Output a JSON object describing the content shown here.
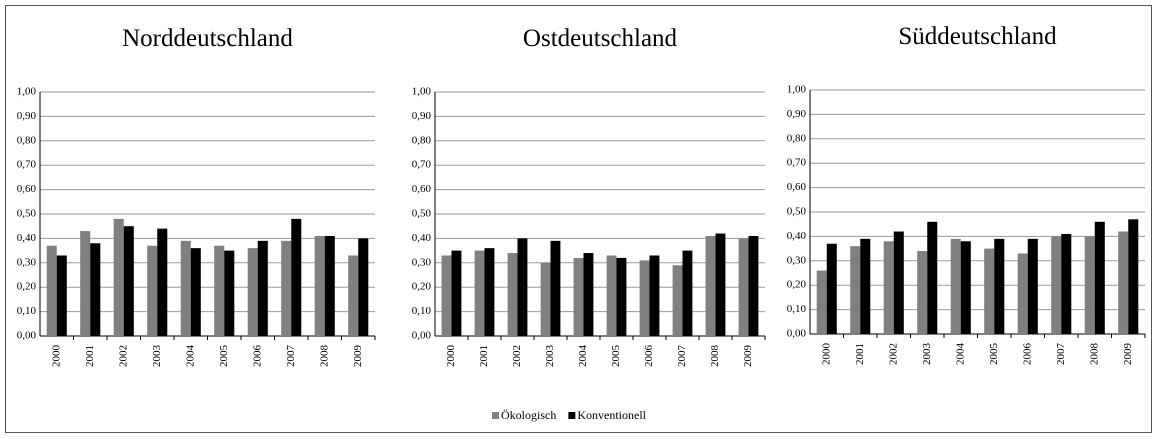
{
  "chart_data": [
    {
      "type": "bar",
      "title": "Norddeutschland",
      "categories": [
        "2000",
        "2001",
        "2002",
        "2003",
        "2004",
        "2005",
        "2006",
        "2007",
        "2008",
        "2009"
      ],
      "series": [
        {
          "name": "Ökologisch",
          "color": "#808080",
          "values": [
            0.37,
            0.43,
            0.48,
            0.37,
            0.39,
            0.37,
            0.36,
            0.39,
            0.41,
            0.33
          ]
        },
        {
          "name": "Konventionell",
          "color": "#000000",
          "values": [
            0.33,
            0.38,
            0.45,
            0.44,
            0.36,
            0.35,
            0.39,
            0.48,
            0.41,
            0.4
          ]
        }
      ],
      "ylim": [
        0,
        1
      ],
      "yticks": [
        {
          "value": 0,
          "label": "0,00"
        },
        {
          "value": 0.1,
          "label": "0,10"
        },
        {
          "value": 0.2,
          "label": "0,20"
        },
        {
          "value": 0.3,
          "label": "0,30"
        },
        {
          "value": 0.4,
          "label": "0,40"
        },
        {
          "value": 0.5,
          "label": "0,50"
        },
        {
          "value": 0.6,
          "label": "0,60"
        },
        {
          "value": 0.7,
          "label": "0,70"
        },
        {
          "value": 0.8,
          "label": "0,80"
        },
        {
          "value": 0.9,
          "label": "0,90"
        },
        {
          "value": 1,
          "label": "1,00"
        }
      ],
      "grid": true,
      "legend": "bottom"
    },
    {
      "type": "bar",
      "title": "Ostdeutschland",
      "categories": [
        "2000",
        "2001",
        "2002",
        "2003",
        "2004",
        "2005",
        "2006",
        "2007",
        "2008",
        "2009"
      ],
      "series": [
        {
          "color": "#808080",
          "values": [
            0.33,
            0.35,
            0.34,
            0.3,
            0.32,
            0.33,
            0.31,
            0.29,
            0.41,
            0.4
          ]
        },
        {
          "color": "#000000",
          "values": [
            0.35,
            0.36,
            0.4,
            0.39,
            0.34,
            0.32,
            0.33,
            0.35,
            0.42,
            0.41
          ]
        }
      ],
      "ylim": [
        0,
        1
      ],
      "yticks": [
        {
          "value": 0,
          "label": "0,00"
        },
        {
          "value": 0.1,
          "label": "0,10"
        },
        {
          "value": 0.2,
          "label": "0,20"
        },
        {
          "value": 0.3,
          "label": "0,30"
        },
        {
          "value": 0.4,
          "label": "0,40"
        },
        {
          "value": 0.5,
          "label": "0,50"
        },
        {
          "value": 0.6,
          "label": "0,60"
        },
        {
          "value": 0.7,
          "label": "0,70"
        },
        {
          "value": 0.8,
          "label": "0,80"
        },
        {
          "value": 0.9,
          "label": "0,90"
        },
        {
          "value": 1,
          "label": "1,00"
        }
      ],
      "grid": true
    },
    {
      "type": "bar",
      "title": "Süddeutschland",
      "categories": [
        "2000",
        "2001",
        "2002",
        "2003",
        "2004",
        "2005",
        "2006",
        "2007",
        "2008",
        "2009"
      ],
      "series": [
        {
          "color": "#808080",
          "values": [
            0.26,
            0.36,
            0.38,
            0.34,
            0.39,
            0.35,
            0.33,
            0.4,
            0.4,
            0.42
          ]
        },
        {
          "color": "#000000",
          "values": [
            0.37,
            0.39,
            0.42,
            0.46,
            0.38,
            0.39,
            0.39,
            0.41,
            0.46,
            0.47
          ]
        }
      ],
      "ylim": [
        0,
        1
      ],
      "yticks": [
        {
          "value": 0,
          "label": "0,00"
        },
        {
          "value": 0.1,
          "label": "0,10"
        },
        {
          "value": 0.2,
          "label": "0,20"
        },
        {
          "value": 0.3,
          "label": "0,30"
        },
        {
          "value": 0.4,
          "label": "0,40"
        },
        {
          "value": 0.5,
          "label": "0,50"
        },
        {
          "value": 0.6,
          "label": "0,60"
        },
        {
          "value": 0.7,
          "label": "0,70"
        },
        {
          "value": 0.8,
          "label": "0,80"
        },
        {
          "value": 0.9,
          "label": "0,90"
        },
        {
          "value": 1,
          "label": "1,00"
        }
      ],
      "grid": true
    }
  ]
}
